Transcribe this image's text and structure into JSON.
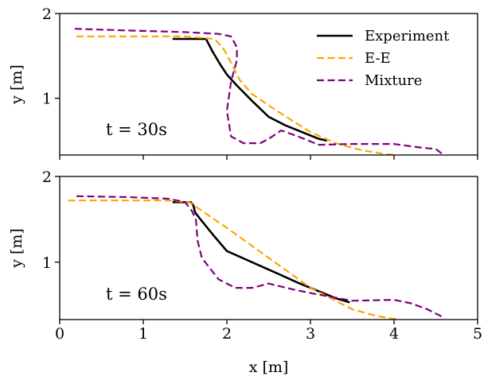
{
  "chart_data": [
    {
      "type": "line",
      "annotation": "t = 30s",
      "xlabel": "",
      "ylabel": "y [m]",
      "xlim": [
        0,
        5
      ],
      "ylim": [
        0.33,
        2.0
      ],
      "xticks": [
        0,
        1,
        2,
        3,
        4,
        5
      ],
      "yticks": [
        1,
        2
      ],
      "legend": {
        "placement": "top-right"
      },
      "series": [
        {
          "name": "Experiment",
          "color": "#000000",
          "style": "solid",
          "x": [
            1.35,
            1.75,
            1.83,
            1.92,
            2.0,
            2.12,
            2.3,
            2.5,
            2.7,
            2.9,
            3.1,
            3.2
          ],
          "y": [
            1.7,
            1.7,
            1.55,
            1.4,
            1.28,
            1.15,
            0.97,
            0.78,
            0.68,
            0.6,
            0.52,
            0.5
          ]
        },
        {
          "name": "E-E",
          "color": "#ffa500",
          "style": "dashed",
          "x": [
            0.2,
            0.8,
            1.5,
            1.85,
            1.95,
            2.05,
            2.15,
            2.3,
            2.6,
            3.0,
            3.3,
            3.6,
            3.9,
            4.02
          ],
          "y": [
            1.73,
            1.73,
            1.73,
            1.7,
            1.6,
            1.42,
            1.22,
            1.05,
            0.85,
            0.6,
            0.47,
            0.39,
            0.34,
            0.33
          ]
        },
        {
          "name": "Mixture",
          "color": "#800080",
          "style": "dashed",
          "x": [
            0.18,
            0.8,
            1.5,
            1.9,
            2.05,
            2.12,
            2.12,
            2.05,
            2.0,
            2.05,
            2.2,
            2.4,
            2.5,
            2.65,
            2.85,
            3.1,
            3.5,
            4.0,
            4.3,
            4.5,
            4.58
          ],
          "y": [
            1.82,
            1.8,
            1.78,
            1.76,
            1.73,
            1.6,
            1.45,
            1.2,
            0.85,
            0.55,
            0.47,
            0.47,
            0.52,
            0.62,
            0.55,
            0.45,
            0.46,
            0.46,
            0.42,
            0.4,
            0.34
          ]
        }
      ]
    },
    {
      "type": "line",
      "annotation": "t = 60s",
      "xlabel": "x [m]",
      "ylabel": "y [m]",
      "xlim": [
        0,
        5
      ],
      "ylim": [
        0.33,
        2.0
      ],
      "xticks": [
        0,
        1,
        2,
        3,
        4,
        5
      ],
      "yticks": [
        1,
        2
      ],
      "series": [
        {
          "name": "Experiment",
          "color": "#000000",
          "style": "solid",
          "x": [
            1.35,
            1.57,
            1.6,
            1.62,
            1.7,
            1.85,
            2.0,
            2.3,
            2.6,
            2.85,
            3.1,
            3.3,
            3.47
          ],
          "y": [
            1.7,
            1.7,
            1.66,
            1.58,
            1.48,
            1.3,
            1.13,
            1.0,
            0.87,
            0.76,
            0.66,
            0.58,
            0.53
          ]
        },
        {
          "name": "E-E",
          "color": "#ffa500",
          "style": "dashed",
          "x": [
            0.1,
            0.8,
            1.3,
            1.55,
            1.7,
            2.0,
            2.5,
            3.0,
            3.5,
            3.8,
            4.05
          ],
          "y": [
            1.72,
            1.72,
            1.72,
            1.7,
            1.6,
            1.4,
            1.05,
            0.7,
            0.45,
            0.37,
            0.33
          ]
        },
        {
          "name": "Mixture",
          "color": "#800080",
          "style": "dashed",
          "x": [
            0.2,
            0.8,
            1.3,
            1.5,
            1.58,
            1.63,
            1.65,
            1.7,
            1.9,
            2.1,
            2.3,
            2.5,
            2.8,
            3.05,
            3.5,
            4.0,
            4.2,
            4.4,
            4.6
          ],
          "y": [
            1.77,
            1.76,
            1.74,
            1.7,
            1.6,
            1.5,
            1.25,
            1.05,
            0.8,
            0.7,
            0.7,
            0.75,
            0.68,
            0.63,
            0.55,
            0.56,
            0.52,
            0.45,
            0.35
          ]
        }
      ]
    }
  ]
}
